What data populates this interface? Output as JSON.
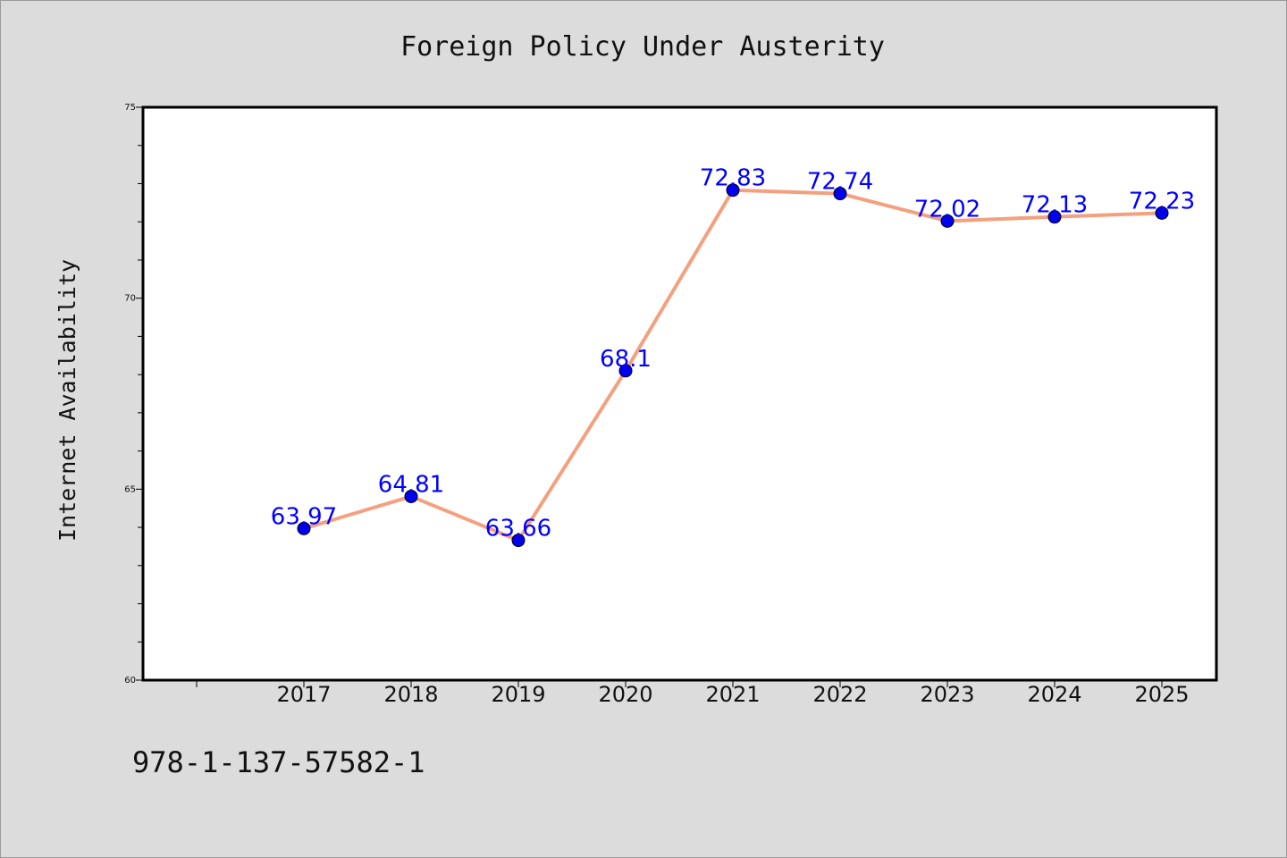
{
  "chart_data": {
    "type": "line",
    "title": "Foreign Policy Under Austerity",
    "xlabel": "",
    "ylabel": "Internet Availability",
    "categories": [
      "2017",
      "2018",
      "2019",
      "2020",
      "2021",
      "2022",
      "2023",
      "2024",
      "2025"
    ],
    "series": [
      {
        "values": [
          63.97,
          64.81,
          63.66,
          68.1,
          72.83,
          72.74,
          72.02,
          72.13,
          72.23
        ],
        "value_labels": [
          "63.97",
          "64.81",
          "63.66",
          "68.1",
          "72.83",
          "72.74",
          "72.02",
          "72.13",
          "72.23"
        ]
      }
    ],
    "ylim": [
      60,
      75
    ],
    "yticks": [
      "60",
      "65",
      "70",
      "75"
    ],
    "grid": false,
    "legend": "none",
    "line_color": "#f4a07e",
    "marker_color": "#0000ee",
    "label_color": "#0000ff"
  },
  "footer_text": "978-1-137-57582-1",
  "colors": {
    "background": "#dcdcdc",
    "plot_background": "#ffffff"
  }
}
